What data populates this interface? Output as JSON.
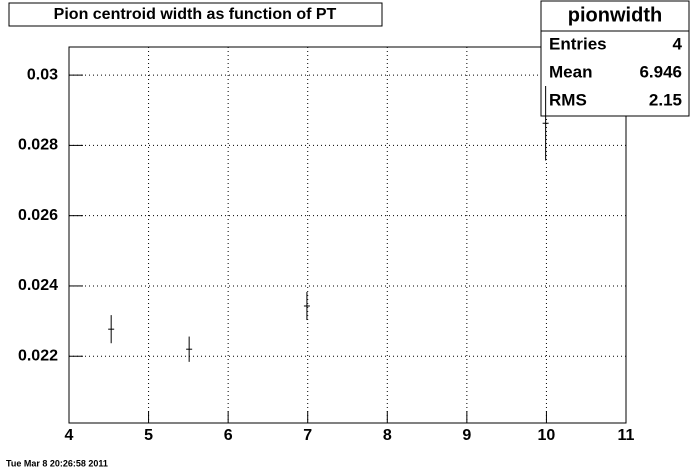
{
  "chart_data": {
    "type": "errorbar",
    "title": "Pion centroid width as function of PT",
    "x": [
      4.53,
      5.51,
      6.99,
      9.99
    ],
    "values": [
      0.02277,
      0.0222,
      0.02343,
      0.02863
    ],
    "errors": [
      0.0004,
      0.00036,
      0.0004,
      0.00106
    ],
    "color": "#000000",
    "xlim": [
      4,
      11
    ],
    "xticks": [
      4,
      5,
      6,
      7,
      8,
      9,
      10,
      11
    ],
    "ylim": [
      0.0201,
      0.0308
    ],
    "yticks": [
      0.022,
      0.024,
      0.026,
      0.028,
      0.03
    ],
    "grid": true,
    "stats_title": "pionwidth",
    "stats": [
      {
        "label": "Entries",
        "value": 4
      },
      {
        "label": "Mean",
        "value": 6.946
      },
      {
        "label": "RMS",
        "value": 2.15
      }
    ],
    "footer": "Tue Mar  8 20:26:58 2011"
  }
}
